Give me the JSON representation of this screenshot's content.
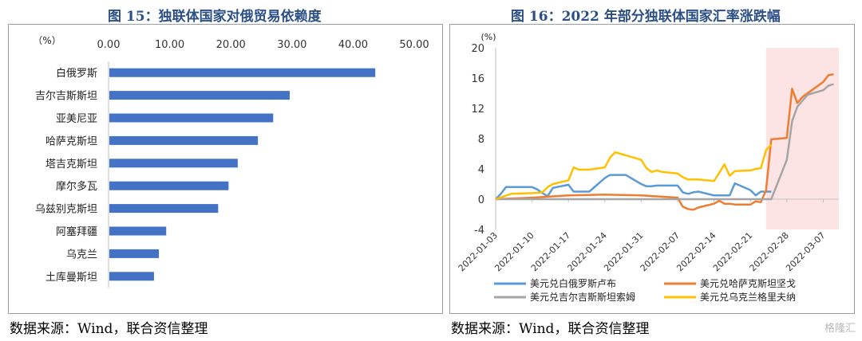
{
  "left": {
    "title": "图 15：独联体国家对俄贸易依赖度",
    "source": "数据来源：Wind，联合资信整理",
    "chart_data": {
      "type": "bar",
      "orientation": "horizontal",
      "unit_label": "（%）",
      "xlim": [
        0,
        50
      ],
      "xticks": [
        "0.00",
        "10.00",
        "20.00",
        "30.00",
        "40.00",
        "50.00"
      ],
      "categories": [
        "白俄罗斯",
        "吉尔吉斯斯坦",
        "亚美尼亚",
        "哈萨克斯坦",
        "塔吉克斯坦",
        "摩尔多瓦",
        "乌兹别克斯坦",
        "阿塞拜疆",
        "乌克兰",
        "土库曼斯坦"
      ],
      "values": [
        43.5,
        29.5,
        26.8,
        24.3,
        21.0,
        19.5,
        17.8,
        9.3,
        8.1,
        7.3
      ],
      "color": "#4472c4"
    }
  },
  "right": {
    "title": "图 16：2022 年部分独联体国家汇率涨跌幅",
    "source": "数据来源：Wind，联合资信整理",
    "chart_data": {
      "type": "line",
      "unit_label": "(%)",
      "ylim": [
        -4,
        20
      ],
      "yticks": [
        "20",
        "16",
        "12",
        "8",
        "4",
        "0",
        "-4"
      ],
      "xlim": [
        "2022-01-03",
        "2022-03-10"
      ],
      "xticks": [
        "2022-01-03",
        "2022-01-10",
        "2022-01-17",
        "2022-01-24",
        "2022-01-31",
        "2022-02-07",
        "2022-02-14",
        "2022-02-21",
        "2022-02-28",
        "2022-03-07"
      ],
      "shaded_range": [
        "2022-02-24",
        "2022-03-10"
      ],
      "shade_color": "#fde4e4",
      "series": [
        {
          "name": "美元兑白俄罗斯卢布",
          "color": "#5b9bd5",
          "x": [
            "2022-01-03",
            "2022-01-04",
            "2022-01-05",
            "2022-01-06",
            "2022-01-07",
            "2022-01-10",
            "2022-01-11",
            "2022-01-12",
            "2022-01-13",
            "2022-01-14",
            "2022-01-17",
            "2022-01-18",
            "2022-01-19",
            "2022-01-20",
            "2022-01-21",
            "2022-01-24",
            "2022-01-25",
            "2022-01-26",
            "2022-01-27",
            "2022-01-28",
            "2022-01-31",
            "2022-02-01",
            "2022-02-02",
            "2022-02-03",
            "2022-02-04",
            "2022-02-07",
            "2022-02-08",
            "2022-02-09",
            "2022-02-10",
            "2022-02-11",
            "2022-02-14",
            "2022-02-15",
            "2022-02-16",
            "2022-02-17",
            "2022-02-18",
            "2022-02-21",
            "2022-02-22",
            "2022-02-23",
            "2022-02-24",
            "2022-02-25"
          ],
          "y": [
            0,
            0.7,
            1.6,
            1.6,
            1.6,
            1.6,
            1.3,
            0.8,
            0.4,
            1.5,
            1.9,
            1.0,
            1.0,
            1.0,
            1.0,
            2.8,
            3.2,
            3.2,
            3.2,
            3.2,
            2.0,
            1.7,
            1.7,
            1.8,
            1.8,
            1.8,
            0.9,
            0.7,
            0.9,
            1.0,
            0.5,
            0.5,
            0.5,
            0.5,
            2.1,
            1.2,
            0.5,
            1.0,
            1.0,
            1.0
          ]
        },
        {
          "name": "美元兑哈萨克斯坦坚戈",
          "color": "#ed7d31",
          "x": [
            "2022-01-03",
            "2022-01-10",
            "2022-01-17",
            "2022-01-24",
            "2022-01-31",
            "2022-02-07",
            "2022-02-08",
            "2022-02-09",
            "2022-02-10",
            "2022-02-11",
            "2022-02-14",
            "2022-02-15",
            "2022-02-16",
            "2022-02-17",
            "2022-02-18",
            "2022-02-21",
            "2022-02-22",
            "2022-02-23",
            "2022-02-24",
            "2022-02-25",
            "2022-02-28",
            "2022-03-01",
            "2022-03-02",
            "2022-03-03",
            "2022-03-04",
            "2022-03-07",
            "2022-03-08",
            "2022-03-09"
          ],
          "y": [
            0,
            0.2,
            0.5,
            0.6,
            0.5,
            0.2,
            -1.0,
            -1.3,
            -1.4,
            -1.1,
            -0.6,
            -0.2,
            -0.6,
            -0.6,
            -0.7,
            -0.7,
            -0.3,
            -0.4,
            1.2,
            7.9,
            8.1,
            14.6,
            12.7,
            13.5,
            14.0,
            15.5,
            16.4,
            16.5
          ]
        },
        {
          "name": "美元兑吉尔吉斯斯坦索姆",
          "color": "#a5a5a5",
          "x": [
            "2022-01-03",
            "2022-01-10",
            "2022-01-17",
            "2022-01-24",
            "2022-01-31",
            "2022-02-07",
            "2022-02-14",
            "2022-02-21",
            "2022-02-24",
            "2022-02-25",
            "2022-02-28",
            "2022-03-01",
            "2022-03-02",
            "2022-03-03",
            "2022-03-04",
            "2022-03-07",
            "2022-03-08",
            "2022-03-09"
          ],
          "y": [
            0,
            0,
            0,
            0,
            0,
            0,
            0,
            0,
            0,
            0,
            5.2,
            10.3,
            12.2,
            13.0,
            13.8,
            14.4,
            15.0,
            15.2
          ]
        },
        {
          "name": "美元兑乌克兰格里夫纳",
          "color": "#ffc000",
          "x": [
            "2022-01-03",
            "2022-01-06",
            "2022-01-10",
            "2022-01-12",
            "2022-01-13",
            "2022-01-14",
            "2022-01-17",
            "2022-01-18",
            "2022-01-19",
            "2022-01-20",
            "2022-01-21",
            "2022-01-24",
            "2022-01-25",
            "2022-01-26",
            "2022-01-27",
            "2022-01-28",
            "2022-01-31",
            "2022-02-01",
            "2022-02-02",
            "2022-02-03",
            "2022-02-04",
            "2022-02-07",
            "2022-02-08",
            "2022-02-09",
            "2022-02-10",
            "2022-02-11",
            "2022-02-14",
            "2022-02-15",
            "2022-02-16",
            "2022-02-17",
            "2022-02-18",
            "2022-02-21",
            "2022-02-22",
            "2022-02-23",
            "2022-02-24",
            "2022-02-25"
          ],
          "y": [
            0,
            0.7,
            0.8,
            0.9,
            1.6,
            2.0,
            2.5,
            4.2,
            3.9,
            3.9,
            3.9,
            4.2,
            5.5,
            6.2,
            6.0,
            5.8,
            5.2,
            4.1,
            3.6,
            3.8,
            3.6,
            3.4,
            2.9,
            2.6,
            2.6,
            2.6,
            2.4,
            3.5,
            4.6,
            3.1,
            3.7,
            3.8,
            4.0,
            4.1,
            6.5,
            7.2
          ]
        }
      ]
    }
  },
  "watermark": "格隆汇"
}
